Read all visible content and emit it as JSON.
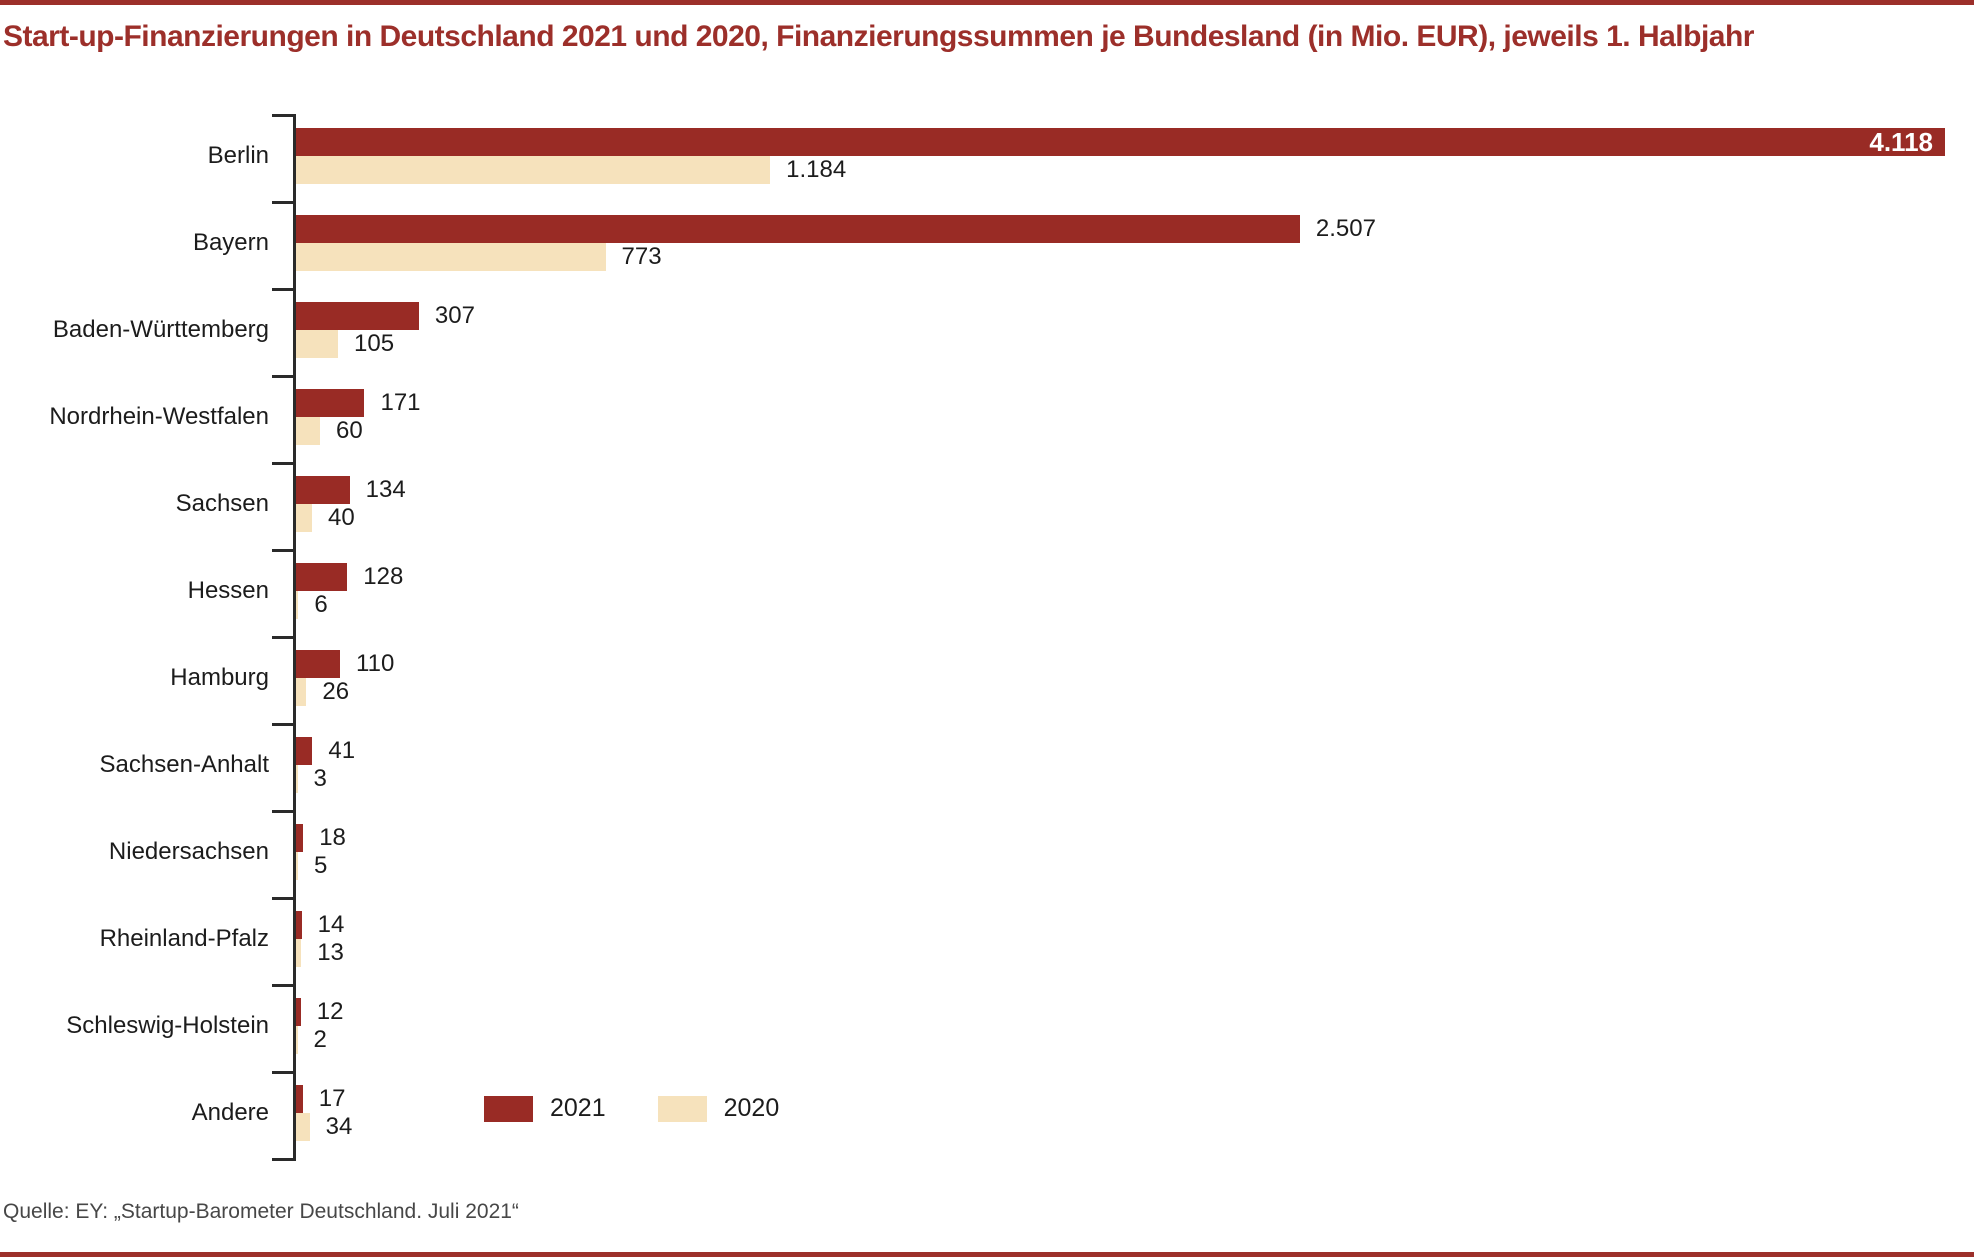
{
  "page": {
    "title": "Start-up-Finanzierungen in Deutschland 2021 und 2020, Finanzierungssummen je Bundesland (in Mio. EUR), jeweils 1. Halbjahr",
    "source": "Quelle: EY: „Startup-Barometer Deutschland. Juli 2021“",
    "accent_color": "#9c2f2a"
  },
  "legend": [
    {
      "label": "2021",
      "color": "#992b25"
    },
    {
      "label": "2020",
      "color": "#f6e2bc"
    }
  ],
  "chart_data": {
    "type": "bar",
    "orientation": "horizontal",
    "title": "Start-up-Finanzierungen in Deutschland 2021 und 2020, Finanzierungssummen je Bundesland (in Mio. EUR), jeweils 1. Halbjahr",
    "unit": "Mio. EUR",
    "xlim": [
      0,
      4118
    ],
    "x_axis_visible": false,
    "grid": false,
    "legend_position": "bottom-left-inside",
    "categories": [
      "Berlin",
      "Bayern",
      "Baden-Württemberg",
      "Nordrhein-Westfalen",
      "Sachsen",
      "Hessen",
      "Hamburg",
      "Sachsen-Anhalt",
      "Niedersachsen",
      "Rheinland-Pfalz",
      "Schleswig-Holstein",
      "Andere"
    ],
    "series": [
      {
        "name": "2021",
        "color": "#992b25",
        "values": [
          4118,
          2507,
          307,
          171,
          134,
          128,
          110,
          41,
          18,
          14,
          12,
          17
        ],
        "labels": [
          "4.118",
          "2.507",
          "307",
          "171",
          "134",
          "128",
          "110",
          "41",
          "18",
          "14",
          "12",
          "17"
        ]
      },
      {
        "name": "2020",
        "color": "#f6e2bc",
        "values": [
          1184,
          773,
          105,
          60,
          40,
          6,
          26,
          3,
          5,
          13,
          2,
          34
        ],
        "labels": [
          "1.184",
          "773",
          "105",
          "60",
          "40",
          "6",
          "26",
          "3",
          "5",
          "13",
          "2",
          "34"
        ]
      }
    ]
  }
}
